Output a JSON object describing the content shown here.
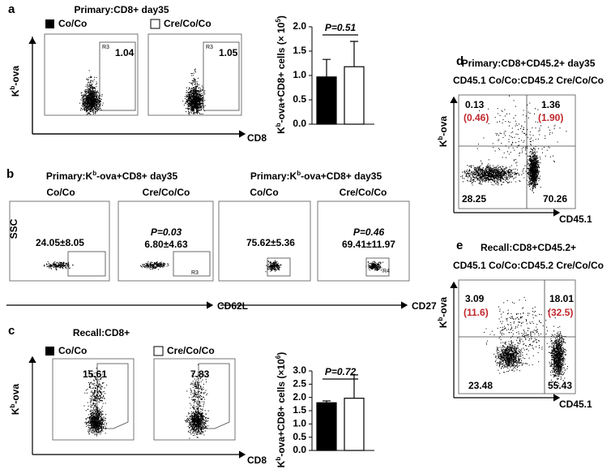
{
  "panels": {
    "a": {
      "label": "a",
      "title": "Primary:CD8+ day35",
      "legend": [
        "Co/Co",
        "Cre/Co/Co"
      ],
      "gates": [
        "1.04",
        "1.05"
      ],
      "gate_names": [
        "R3",
        "R3"
      ],
      "y_axis": [
        "K",
        "b",
        "-ova"
      ],
      "x_axis": "CD8"
    },
    "b": {
      "label": "b",
      "titles": [
        [
          "Primary:K",
          "b",
          "-ova+CD8+ day35"
        ],
        [
          "Primary:K",
          "b",
          "-ova+CD8+ day35"
        ]
      ],
      "groups": [
        "Co/Co",
        "Cre/Co/Co",
        "Co/Co",
        "Cre/Co/Co"
      ],
      "stats": [
        "24.05±8.05",
        "6.80±4.63",
        "75.62±5.36",
        "69.41±11.97"
      ],
      "p_values": [
        "P=0.03",
        "P=0.46"
      ],
      "gate_names": [
        "R3",
        "R4"
      ],
      "y_axis": "SSC",
      "x_axes": [
        "CD62L",
        "CD27"
      ]
    },
    "c": {
      "label": "c",
      "title": "Recall:CD8+",
      "legend": [
        "Co/Co",
        "Cre/Co/Co"
      ],
      "gates": [
        "15.61",
        "7.83"
      ],
      "y_axis": [
        "K",
        "b",
        "-ova"
      ],
      "x_axis": "CD8"
    },
    "d": {
      "label": "d",
      "titles": [
        "Primary:CD8+CD45.2+  day35",
        "CD45.1 Co/Co:CD45.2 Cre/Co/Co"
      ],
      "quadrants": [
        "0.13",
        "1.36",
        "28.25",
        "70.26"
      ],
      "red_values": [
        "(0.46)",
        "(1.90)"
      ],
      "y_axis": [
        "K",
        "b",
        "-ova"
      ],
      "x_axis": "CD45.1"
    },
    "e": {
      "label": "e",
      "titles": [
        "Recall:CD8+CD45.2+",
        "CD45.1 Co/Co:CD45.2 Cre/Co/Co"
      ],
      "quadrants": [
        "3.09",
        "18.01",
        "23.48",
        "55.43"
      ],
      "red_values": [
        "(11.6)",
        "(32.5)"
      ],
      "y_axis": [
        "K",
        "b",
        "-ova"
      ],
      "x_axis": "CD45.1"
    }
  },
  "chart_data": [
    {
      "type": "bar",
      "y_label": [
        "K",
        "b",
        "-ova+CD8+ cells (× 10",
        "5",
        ")"
      ],
      "values": [
        0.97,
        1.18
      ],
      "errors": [
        0.36,
        0.52
      ],
      "colors": [
        "#000000",
        "#ffffff"
      ],
      "annotation": "P=0.51",
      "ylim": [
        0,
        2
      ],
      "yticks": [
        {
          "value": 0,
          "label": "0.0"
        },
        0.5,
        {
          "value": 1,
          "label": "1.0"
        },
        1.5,
        {
          "value": 2,
          "label": "2.0"
        }
      ]
    },
    {
      "type": "bar",
      "y_label": [
        "K",
        "b",
        "-ova+CD8+ cells (×10",
        "6",
        ")"
      ],
      "values": [
        1.8,
        1.97
      ],
      "errors": [
        0.07,
        0.88
      ],
      "colors": [
        "#000000",
        "#ffffff"
      ],
      "annotation": "P=0.72",
      "ylim": [
        0,
        3
      ],
      "yticks": [
        {
          "value": 0,
          "label": "0.0"
        },
        0.5,
        {
          "value": 1,
          "label": "1.0"
        },
        1.5,
        {
          "value": 2,
          "label": "2.0"
        },
        2.5,
        {
          "value": 3,
          "label": "3.0"
        }
      ]
    }
  ]
}
